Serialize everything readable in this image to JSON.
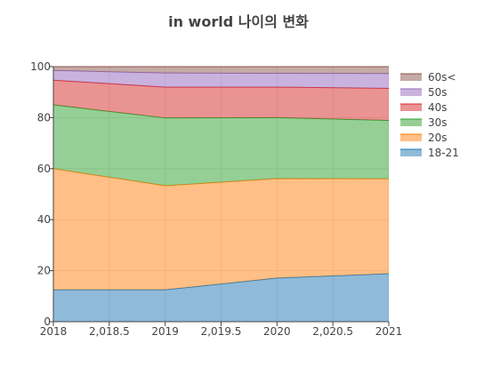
{
  "chart_data": {
    "type": "area",
    "stacked": true,
    "title": "in world 나이의 변화",
    "xlabel": "",
    "ylabel": "",
    "x": [
      2018,
      2019,
      2020,
      2021
    ],
    "xlim": [
      2018,
      2021
    ],
    "ylim": [
      0,
      100
    ],
    "x_tick_values": [
      2018,
      2018.5,
      2019,
      2019.5,
      2020,
      2020.5,
      2021
    ],
    "x_tick_labels": [
      "2018",
      "2,018.5",
      "2019",
      "2,019.5",
      "2020",
      "2,020.5",
      "2021"
    ],
    "y_tick_values": [
      0,
      20,
      40,
      60,
      80,
      100
    ],
    "y_tick_labels": [
      "0",
      "20",
      "40",
      "60",
      "80",
      "100"
    ],
    "grid": true,
    "legend_position": "right",
    "series": [
      {
        "name": "18-21",
        "values": [
          12.5,
          12.5,
          17.1,
          18.8
        ],
        "color": "#1f77b4"
      },
      {
        "name": "20s",
        "values": [
          47.5,
          40.8,
          39.0,
          37.2
        ],
        "color": "#ff7f0e"
      },
      {
        "name": "30s",
        "values": [
          25.0,
          26.6,
          23.9,
          22.9
        ],
        "color": "#2ca02c"
      },
      {
        "name": "40s",
        "values": [
          9.7,
          12.1,
          12.0,
          12.6
        ],
        "color": "#d62728"
      },
      {
        "name": "50s",
        "values": [
          3.8,
          5.5,
          5.4,
          5.8
        ],
        "color": "#9467bd"
      },
      {
        "name": "60s<",
        "values": [
          1.5,
          2.5,
          2.6,
          2.7
        ],
        "color": "#8c564b"
      }
    ]
  }
}
